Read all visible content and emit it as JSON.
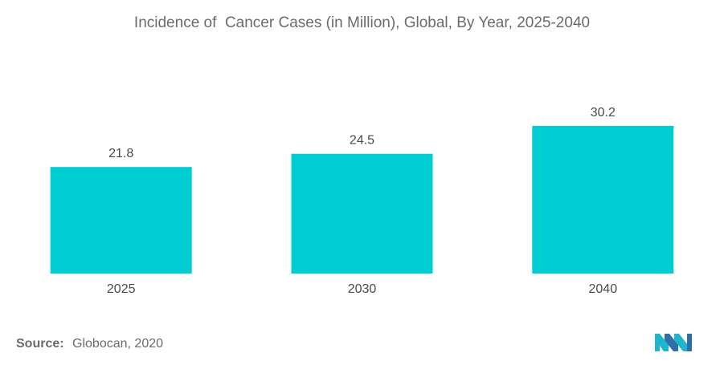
{
  "chart_data": {
    "type": "bar",
    "title": "Incidence of  Cancer Cases (in Million), Global, By Year, 2025-2040",
    "categories": [
      "2025",
      "2030",
      "2040"
    ],
    "values": [
      21.8,
      24.5,
      30.2
    ],
    "value_labels": [
      "21.8",
      "24.5",
      "30.2"
    ],
    "xlabel": "",
    "ylabel": "",
    "ylim": [
      0,
      30.2
    ],
    "grid": false,
    "legend": "none",
    "bar_color": "#00cdd1"
  },
  "source": {
    "label": "Source:",
    "text": "Globocan, 2020"
  },
  "logo": {
    "icon": "mordor-intelligence-logo",
    "colors": [
      "#1fb6cc",
      "#2f6ea6"
    ]
  }
}
